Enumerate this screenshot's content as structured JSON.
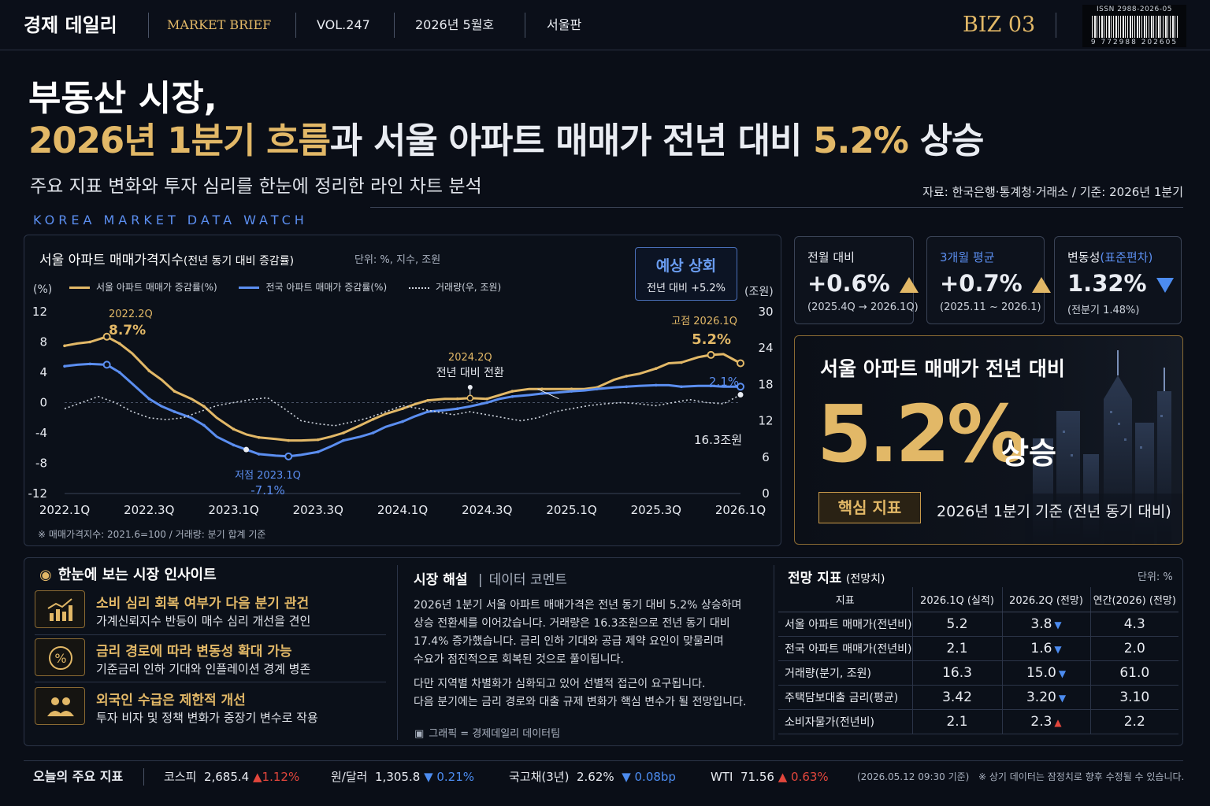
{
  "masthead": {
    "logo": "경제 데일리",
    "section": "MARKET BRIEF",
    "volume": "VOL.247",
    "issue": "2026년 5월호",
    "edition": "서울판",
    "page_code": "BIZ 03",
    "issn": "ISSN 2988-2026-05",
    "barcode_number": "9 772988 202605"
  },
  "headline": {
    "line1": "부동산 시장,",
    "line2_gold": "2026년 1분기 흐름",
    "line2_mid": "과 서울 아파트 매매가 전년 대비 ",
    "line2_pct": "5.2%",
    "line2_end": " 상승",
    "subtitle": "주요 지표 변화와 투자 심리를 한눈에 정리한 라인 차트 분석",
    "source": "자료: 한국은행·통계청·거래소  /  기준: 2026년 1분기",
    "kicker": "KOREA MARKET DATA WATCH"
  },
  "chart": {
    "title": "서울 아파트 매매가격지수",
    "title_small": "(전년 동기 대비 증감률)",
    "unit": "단위: %, 지수, 조원",
    "forecast_badge_title": "예상 상회",
    "forecast_badge_sub": "전년 대비 +5.2%",
    "legend": [
      "서울 아파트 매매가 증감률(%)",
      "전국 아파트 매매가 증감률(%)",
      "거래량(우, 조원)"
    ],
    "left_axis_label": "(%)",
    "right_axis_label": "(조원)",
    "note": "※ 매매가격지수:  2021.6=100  /  거래량: 분기 합계 기준",
    "annotations": {
      "peak_label": "2022.2Q",
      "peak_value": "8.7%",
      "trough_label": "저점 2023.1Q",
      "trough_value": "-7.1%",
      "turn_label": "2024.2Q",
      "turn_text": "전년 대비 전환",
      "high_label": "고점 2026.1Q",
      "high_value": "5.2%",
      "nat_value": "2.1%",
      "vol_value": "16.3조원"
    }
  },
  "chart_data": {
    "type": "line",
    "title": "서울 아파트 매매가격지수(전년 동기 대비 증감률)",
    "x_ticks": [
      "2022.1Q",
      "2022.3Q",
      "2023.1Q",
      "2023.3Q",
      "2024.1Q",
      "2024.3Q",
      "2025.1Q",
      "2025.3Q",
      "2026.1Q"
    ],
    "y_left_ticks": [
      12,
      8,
      4,
      0,
      -4,
      -8,
      -12
    ],
    "y_right_ticks": [
      30,
      24,
      18,
      12,
      6,
      0
    ],
    "ylim_left": [
      -12,
      12
    ],
    "ylim_right": [
      0,
      30
    ],
    "x_range": [
      0,
      16
    ],
    "series": [
      {
        "name": "서울 아파트 매매가 증감률(%)",
        "axis": "left",
        "color": "#e2b867",
        "x": [
          0,
          0.3,
          0.6,
          1,
          1.3,
          1.6,
          2,
          2.3,
          2.6,
          3,
          3.3,
          3.6,
          4,
          4.3,
          4.6,
          5,
          5.3,
          5.6,
          6,
          6.3,
          6.6,
          7,
          7.3,
          7.6,
          8,
          8.3,
          8.6,
          9,
          9.3,
          9.6,
          10,
          10.3,
          10.6,
          11,
          11.3,
          11.6,
          12,
          12.3,
          12.6,
          13,
          13.3,
          13.6,
          14,
          14.3,
          14.6,
          15,
          15.3,
          15.6,
          16
        ],
        "values": [
          7.5,
          7.8,
          8.0,
          8.7,
          7.8,
          6.5,
          4.2,
          3.0,
          1.5,
          0.5,
          -0.5,
          -2.0,
          -3.5,
          -4.2,
          -4.6,
          -4.8,
          -5.0,
          -5.0,
          -4.9,
          -4.5,
          -4.0,
          -3.0,
          -2.2,
          -1.5,
          -0.8,
          -0.2,
          0.3,
          0.5,
          0.5,
          0.6,
          0.5,
          1.0,
          1.5,
          1.8,
          1.8,
          1.8,
          1.8,
          1.8,
          2.0,
          3.0,
          3.5,
          3.8,
          4.5,
          5.2,
          5.3,
          6.0,
          6.3,
          6.4,
          5.2
        ]
      },
      {
        "name": "전국 아파트 매매가 증감률(%)",
        "axis": "left",
        "color": "#5b8ef0",
        "x": [
          0,
          0.3,
          0.6,
          1,
          1.3,
          1.6,
          2,
          2.3,
          2.6,
          3,
          3.3,
          3.6,
          4,
          4.3,
          4.6,
          5,
          5.3,
          5.6,
          6,
          6.3,
          6.6,
          7,
          7.3,
          7.6,
          8,
          8.3,
          8.6,
          9,
          9.3,
          9.6,
          10,
          10.3,
          10.6,
          11,
          11.3,
          11.6,
          12,
          12.3,
          12.6,
          13,
          13.3,
          13.6,
          14,
          14.3,
          14.6,
          15,
          15.3,
          15.6,
          16
        ],
        "values": [
          4.8,
          5.0,
          5.1,
          5.0,
          4.0,
          2.5,
          0.5,
          -0.5,
          -1.2,
          -2.0,
          -3.0,
          -4.5,
          -5.6,
          -6.2,
          -6.8,
          -7.0,
          -7.1,
          -6.9,
          -6.5,
          -5.8,
          -5.0,
          -4.5,
          -4.0,
          -3.2,
          -2.5,
          -1.8,
          -1.2,
          -1.0,
          -0.8,
          -0.5,
          0.0,
          0.5,
          0.8,
          1.0,
          1.2,
          1.3,
          1.5,
          1.6,
          1.8,
          2.0,
          2.1,
          2.2,
          2.3,
          2.3,
          2.1,
          2.2,
          2.2,
          2.1,
          2.1
        ]
      },
      {
        "name": "거래량(우, 조원)",
        "axis": "right",
        "color": "#cfd5de",
        "x": [
          0,
          0.4,
          0.8,
          1.2,
          1.6,
          2,
          2.4,
          2.8,
          3.2,
          3.6,
          4,
          4.4,
          4.8,
          5.2,
          5.6,
          6,
          6.4,
          6.8,
          7.2,
          7.6,
          8,
          8.4,
          8.8,
          9.2,
          9.6,
          10,
          10.4,
          10.8,
          11.2,
          11.6,
          12,
          12.4,
          12.8,
          13.2,
          13.6,
          14,
          14.4,
          14.8,
          15.2,
          15.6,
          16
        ],
        "values": [
          14,
          15,
          16,
          15,
          13.5,
          12.5,
          12.2,
          12.5,
          13.5,
          14.5,
          15.0,
          15.5,
          15.8,
          14,
          12,
          11.5,
          11.2,
          11.8,
          12.5,
          13.5,
          14.5,
          14.0,
          13.5,
          13.0,
          13.5,
          13.0,
          12.5,
          12.0,
          12.5,
          13.5,
          14.0,
          14.5,
          14.8,
          15.0,
          14.8,
          14.5,
          15.0,
          15.5,
          15.0,
          14.8,
          16.3
        ]
      }
    ]
  },
  "kpis": [
    {
      "label": "전월 대비",
      "value": "+0.6%",
      "sub": "(2025.4Q → 2026.1Q)",
      "dir": "up"
    },
    {
      "label": "3개월 평균",
      "value": "+0.7%",
      "sub": "(2025.11 ~ 2026.1)",
      "dir": "up"
    },
    {
      "label": "변동성",
      "label_accent": "(표준편차)",
      "value": "1.32%",
      "sub": "(전분기 1.48%)",
      "dir": "down"
    }
  ],
  "hero": {
    "label": "서울 아파트 매매가 전년 대비",
    "number": "5.2%",
    "unit": "상승",
    "badge": "핵심 지표",
    "note": "2026년 1분기 기준 (전년 동기 대비)"
  },
  "insights": {
    "title": "한눈에 보는 시장 인사이트",
    "items": [
      {
        "title": "소비 심리 회복 여부가 다음 분기 관건",
        "desc": "가계신뢰지수 반등이 매수 심리 개선을 견인",
        "icon": "chart-up-icon"
      },
      {
        "title": "금리 경로에 따라 변동성 확대 가능",
        "desc": "기준금리 인하 기대와 인플레이션 경계 병존",
        "icon": "percent-icon"
      },
      {
        "title": "외국인 수급은 제한적 개선",
        "desc": "투자 비자 및 정책 변화가 중장기 변수로 작용",
        "icon": "people-icon"
      }
    ]
  },
  "commentary": {
    "title": "시장 해설",
    "subtitle": "데이터 코멘트",
    "lines1": [
      "2026년 1분기 서울 아파트 매매가격은 전년 동기 대비 5.2% 상승하며",
      "상승 전환세를 이어갔습니다. 거래량은 16.3조원으로 전년 동기 대비",
      "17.4% 증가했습니다. 금리 인하 기대와 공급 제약 요인이 맞물리며",
      "수요가 점진적으로 회복된 것으로 풀이됩니다."
    ],
    "lines2": [
      "다만 지역별 차별화가 심화되고 있어 선별적 접근이 요구됩니다.",
      "다음 분기에는 금리 경로와 대출 규제 변화가 핵심 변수가 될 전망입니다."
    ],
    "credit": "그래픽 = 경제데일리 데이터팀"
  },
  "outlook": {
    "title": "전망 지표",
    "title_small": "(전망치)",
    "unit": "단위: %",
    "headers": [
      "지표",
      "2026.1Q (실적)",
      "2026.2Q (전망)",
      "연간(2026) (전망)"
    ],
    "rows": [
      {
        "name": "서울 아파트 매매가(전년비)",
        "q1": "5.2",
        "q2": "3.8",
        "dir": "down",
        "year": "4.3"
      },
      {
        "name": "전국 아파트 매매가(전년비)",
        "q1": "2.1",
        "q2": "1.6",
        "dir": "down",
        "year": "2.0"
      },
      {
        "name": "거래량(분기, 조원)",
        "q1": "16.3",
        "q2": "15.0",
        "dir": "down",
        "year": "61.0"
      },
      {
        "name": "주택담보대출 금리(평균)",
        "q1": "3.42",
        "q2": "3.20",
        "dir": "down",
        "year": "3.10"
      },
      {
        "name": "소비자물가(전년비)",
        "q1": "2.1",
        "q2": "2.3",
        "dir": "up",
        "year": "2.2"
      }
    ]
  },
  "ticker": {
    "label": "오늘의 주요 지표",
    "items": [
      {
        "name": "코스피",
        "value": "2,685.4",
        "change": "1.12%",
        "dir": "up"
      },
      {
        "name": "원/달러",
        "value": "1,305.8",
        "change": "0.21%",
        "dir": "down"
      },
      {
        "name": "국고채(3년)",
        "value": "2.62%",
        "change": "0.08bp",
        "dir": "down"
      },
      {
        "name": "WTI",
        "value": "71.56",
        "change": "0.63%",
        "dir": "up"
      }
    ],
    "timestamp": "(2026.05.12 09:30 기준)",
    "disclaimer": "※ 상기 데이터는 잠정치로 향후 수정될 수 있습니다."
  }
}
